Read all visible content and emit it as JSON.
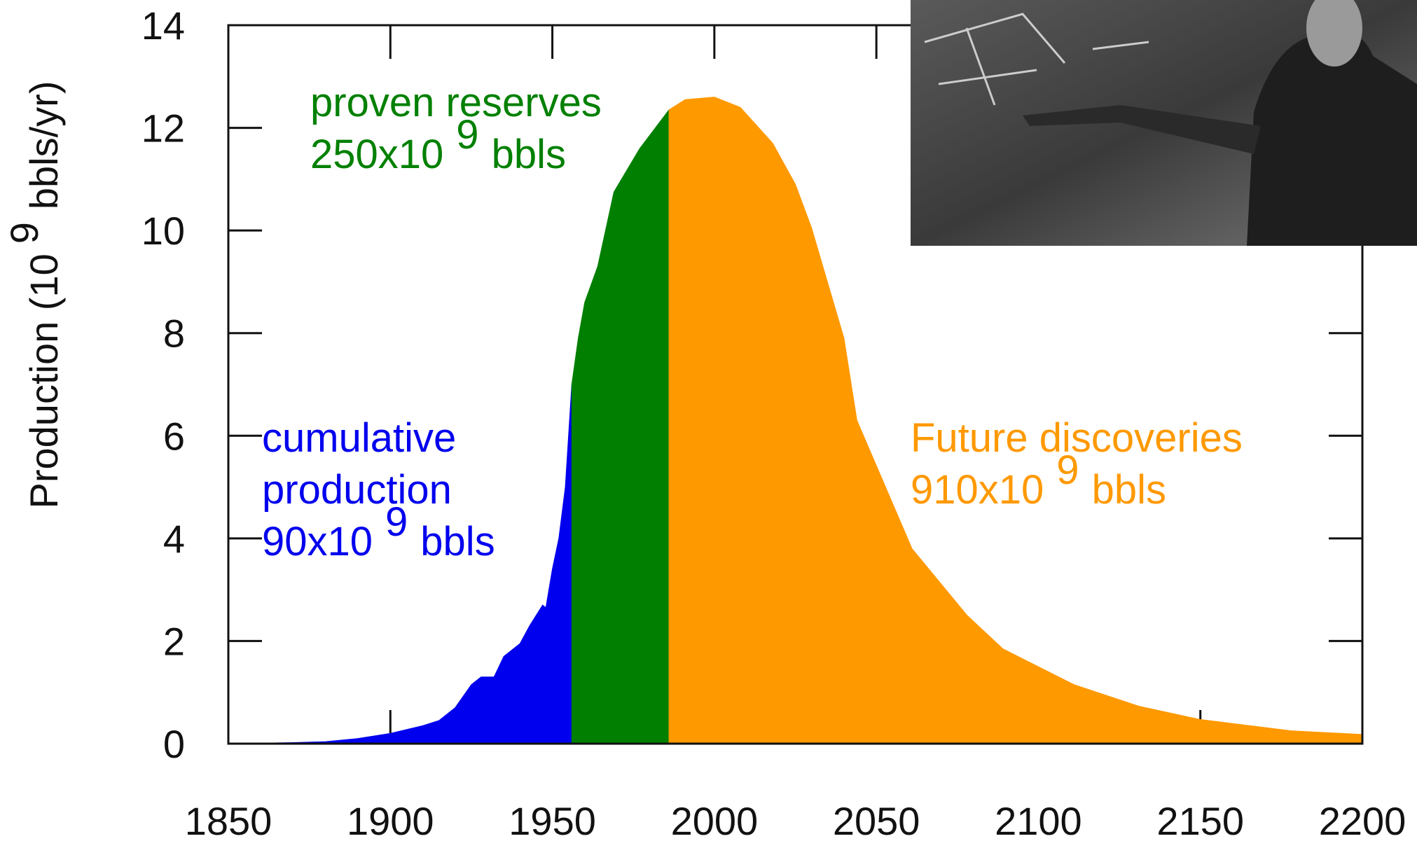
{
  "chart_data": {
    "type": "area",
    "y_label": {
      "prefix": "Production (10",
      "exponent": "9",
      "suffix": "bbls/yr)"
    },
    "xlim": [
      1850,
      2200
    ],
    "xticks": [
      1850,
      1900,
      1950,
      2000,
      2050,
      2100,
      2150,
      2200
    ],
    "ylim": [
      0,
      14
    ],
    "yticks": [
      0,
      2,
      4,
      6,
      8,
      10,
      12,
      14
    ],
    "series": [
      {
        "color": "#0000ee",
        "x": [
          1850,
          1870,
          1880,
          1890,
          1900,
          1910,
          1915,
          1920,
          1925,
          1928,
          1932,
          1935,
          1940,
          1943,
          1947,
          1948,
          1950,
          1952,
          1954,
          1956
        ],
        "values": [
          0,
          0.02,
          0.04,
          0.1,
          0.2,
          0.35,
          0.45,
          0.7,
          1.15,
          1.3,
          1.3,
          1.7,
          1.95,
          2.3,
          2.7,
          2.65,
          3.4,
          4.0,
          5.0,
          7.0
        ]
      },
      {
        "color": "#007f00",
        "x": [
          1956,
          1958,
          1960,
          1964,
          1969,
          1977,
          1986
        ],
        "values": [
          7.0,
          7.9,
          8.6,
          9.3,
          10.75,
          11.6,
          12.35
        ]
      },
      {
        "color": "#ff9900",
        "x": [
          1986,
          1991,
          2000,
          2008,
          2018,
          2025,
          2030,
          2040,
          2044,
          2061,
          2078,
          2089,
          2111,
          2131,
          2150,
          2178,
          2200
        ],
        "values": [
          12.35,
          12.55,
          12.6,
          12.4,
          11.7,
          10.9,
          10.05,
          7.9,
          6.3,
          3.8,
          2.5,
          1.85,
          1.15,
          0.73,
          0.47,
          0.25,
          0.18
        ]
      }
    ],
    "annotations": [
      {
        "color": "#008000",
        "lines": [
          "proven reserves"
        ],
        "prefix": "250x10",
        "exponent": "9",
        "suffix": "bbls"
      },
      {
        "color": "#0000ee",
        "lines": [
          "cumulative",
          "production"
        ],
        "prefix": "90x10",
        "exponent": "9",
        "suffix": "bbls"
      },
      {
        "color": "#ff9900",
        "lines": [
          "Future discoveries"
        ],
        "prefix": "910x10",
        "exponent": "9",
        "suffix": "bbls"
      }
    ]
  }
}
